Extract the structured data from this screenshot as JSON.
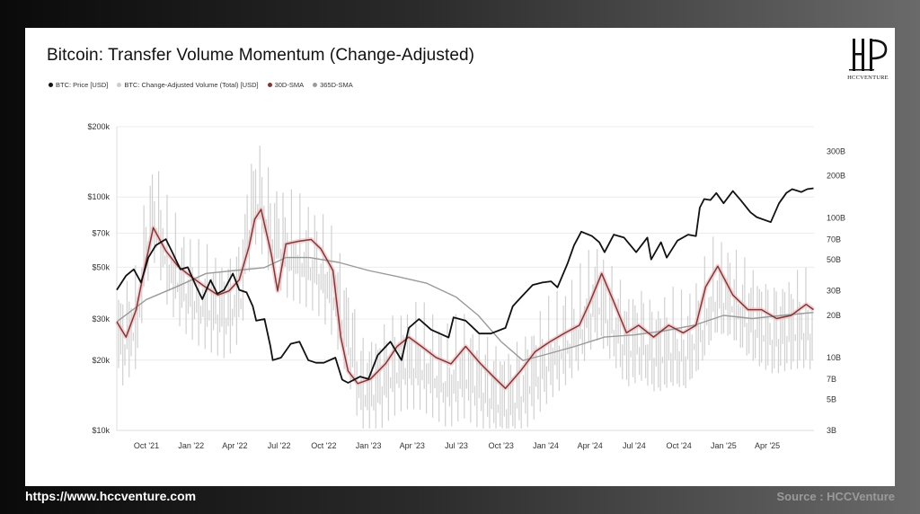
{
  "title": "Bitcoin: Transfer Volume Momentum (Change-Adjusted)",
  "legend": [
    {
      "label": "BTC: Price [USD]",
      "color": "#111111"
    },
    {
      "label": "BTC: Change-Adjusted Volume (Total) [USD]",
      "color": "#cccccc"
    },
    {
      "label": "30D-SMA",
      "color": "#7a3b35"
    },
    {
      "label": "365D-SMA",
      "color": "#9a9a9a"
    }
  ],
  "logo": {
    "text": "HCCVENTURE",
    "icon": "hcc-logo-icon"
  },
  "footer": {
    "url": "https://www.hccventure.com",
    "source": "Source : HCCVenture"
  },
  "colors": {
    "price": "#111111",
    "volume": "#c8c8c8",
    "volume_highlight": "#f3c2c9",
    "sma30": "#7a3b35",
    "sma365": "#9a9a9a"
  },
  "chart_data": {
    "type": "line",
    "title": "Bitcoin: Transfer Volume Momentum (Change-Adjusted)",
    "x_ticks": [
      "Oct '21",
      "Jan '22",
      "Apr '22",
      "Jul '22",
      "Oct '22",
      "Jan '23",
      "Apr '23",
      "Jul '23",
      "Oct '23",
      "Jan '24",
      "Apr '24",
      "Jul '24",
      "Oct '24",
      "Jan '25",
      "Apr '25"
    ],
    "y_left_ticks": [
      "$10k",
      "$20k",
      "$30k",
      "$50k",
      "$70k",
      "$100k",
      "$200k"
    ],
    "y_left_values": [
      10000,
      20000,
      30000,
      50000,
      70000,
      100000,
      200000
    ],
    "y_right_ticks": [
      "3B",
      "5B",
      "7B",
      "10B",
      "20B",
      "30B",
      "50B",
      "70B",
      "100B",
      "200B",
      "300B"
    ],
    "y_right_values": [
      3,
      5,
      7,
      10,
      20,
      30,
      50,
      70,
      100,
      200,
      300
    ],
    "y_left_scale": "log",
    "y_right_scale": "log",
    "ylim_left": [
      10000,
      200000
    ],
    "ylim_right": [
      3,
      450
    ],
    "grid": "horizontal",
    "legend_position": "top-left",
    "series": [
      {
        "name": "BTC: Price [USD]",
        "axis": "left",
        "x": [
          "2021-08-01",
          "2021-08-20",
          "2021-09-05",
          "2021-09-20",
          "2021-10-05",
          "2021-10-20",
          "2021-11-10",
          "2021-11-25",
          "2021-12-10",
          "2021-12-25",
          "2022-01-10",
          "2022-01-24",
          "2022-02-10",
          "2022-02-24",
          "2022-03-10",
          "2022-03-28",
          "2022-04-10",
          "2022-04-25",
          "2022-05-08",
          "2022-05-15",
          "2022-06-01",
          "2022-06-13",
          "2022-06-18",
          "2022-07-05",
          "2022-07-25",
          "2022-08-12",
          "2022-08-30",
          "2022-09-15",
          "2022-10-01",
          "2022-10-25",
          "2022-11-08",
          "2022-11-20",
          "2022-12-15",
          "2023-01-01",
          "2023-01-20",
          "2023-02-15",
          "2023-03-10",
          "2023-03-25",
          "2023-04-15",
          "2023-05-10",
          "2023-06-15",
          "2023-06-25",
          "2023-07-20",
          "2023-08-17",
          "2023-09-10",
          "2023-10-10",
          "2023-10-25",
          "2023-11-10",
          "2023-12-05",
          "2023-12-25",
          "2024-01-12",
          "2024-01-25",
          "2024-02-15",
          "2024-02-28",
          "2024-03-14",
          "2024-04-05",
          "2024-04-20",
          "2024-05-01",
          "2024-05-20",
          "2024-06-10",
          "2024-07-05",
          "2024-07-28",
          "2024-08-05",
          "2024-08-25",
          "2024-09-06",
          "2024-09-28",
          "2024-10-20",
          "2024-11-05",
          "2024-11-13",
          "2024-11-22",
          "2024-12-05",
          "2024-12-17",
          "2025-01-01",
          "2025-01-20",
          "2025-02-05",
          "2025-02-25",
          "2025-03-10",
          "2025-04-08",
          "2025-04-25",
          "2025-05-10",
          "2025-05-22",
          "2025-06-10",
          "2025-06-22",
          "2025-07-05"
        ],
        "values": [
          40000,
          46000,
          49000,
          43000,
          55000,
          62000,
          66000,
          57000,
          49000,
          50000,
          42000,
          36500,
          44000,
          38500,
          40000,
          47000,
          40000,
          39000,
          34000,
          29500,
          30000,
          23000,
          20000,
          20500,
          23500,
          24000,
          20000,
          19500,
          19500,
          20500,
          16500,
          16000,
          17000,
          16600,
          21000,
          24000,
          20000,
          27500,
          30000,
          27000,
          25000,
          30500,
          29500,
          26000,
          26000,
          27500,
          34000,
          37000,
          42000,
          43000,
          43500,
          41000,
          52000,
          62000,
          71000,
          68000,
          64000,
          58000,
          69000,
          67000,
          58000,
          67000,
          54000,
          64000,
          55000,
          65000,
          69000,
          68000,
          90000,
          98000,
          97000,
          104000,
          94000,
          106000,
          97000,
          86000,
          82000,
          78000,
          94000,
          104000,
          108000,
          105000,
          108000,
          109000
        ]
      },
      {
        "name": "30D-SMA",
        "axis": "right",
        "x": [
          "2021-08-01",
          "2021-08-20",
          "2021-09-10",
          "2021-09-25",
          "2021-10-15",
          "2021-11-10",
          "2021-12-05",
          "2022-01-05",
          "2022-01-30",
          "2022-02-25",
          "2022-03-20",
          "2022-04-10",
          "2022-04-30",
          "2022-05-12",
          "2022-05-25",
          "2022-06-15",
          "2022-06-28",
          "2022-07-15",
          "2022-08-10",
          "2022-09-05",
          "2022-09-25",
          "2022-10-20",
          "2022-11-05",
          "2022-11-20",
          "2022-12-10",
          "2023-01-05",
          "2023-02-05",
          "2023-03-01",
          "2023-03-25",
          "2023-04-20",
          "2023-05-20",
          "2023-06-20",
          "2023-07-20",
          "2023-08-20",
          "2023-09-20",
          "2023-10-10",
          "2023-11-10",
          "2023-12-10",
          "2024-01-10",
          "2024-02-10",
          "2024-03-10",
          "2024-04-01",
          "2024-04-25",
          "2024-05-20",
          "2024-06-15",
          "2024-07-10",
          "2024-08-10",
          "2024-09-10",
          "2024-10-10",
          "2024-11-05",
          "2024-11-25",
          "2024-12-20",
          "2025-01-20",
          "2025-02-20",
          "2025-03-20",
          "2025-04-20",
          "2025-05-20",
          "2025-06-20",
          "2025-07-05"
        ],
        "values": [
          18,
          14,
          22,
          40,
          85,
          58,
          45,
          37,
          32,
          28,
          30,
          36,
          62,
          98,
          115,
          55,
          30,
          65,
          68,
          70,
          60,
          42,
          14,
          8,
          6.5,
          7,
          9,
          12,
          14,
          12,
          10,
          9,
          12,
          9,
          7,
          6,
          8,
          11,
          13,
          15,
          17,
          25,
          40,
          25,
          15,
          17,
          14,
          17,
          15,
          17,
          32,
          45,
          28,
          22,
          22,
          19,
          20,
          24,
          22
        ]
      },
      {
        "name": "365D-SMA",
        "axis": "right",
        "x": [
          "2021-08-01",
          "2021-10-01",
          "2021-12-01",
          "2022-02-01",
          "2022-04-01",
          "2022-06-01",
          "2022-07-15",
          "2022-09-01",
          "2022-11-01",
          "2023-01-01",
          "2023-03-01",
          "2023-05-01",
          "2023-07-01",
          "2023-08-15",
          "2023-10-01",
          "2023-11-15",
          "2024-01-01",
          "2024-03-01",
          "2024-05-01",
          "2024-07-01",
          "2024-09-01",
          "2024-11-01",
          "2025-01-01",
          "2025-03-01",
          "2025-05-01",
          "2025-07-05"
        ],
        "values": [
          18,
          26,
          32,
          40,
          42,
          44,
          52,
          52,
          48,
          42,
          38,
          34,
          27,
          20,
          13,
          9.5,
          10.5,
          12,
          14,
          14.5,
          15.5,
          17,
          20,
          19,
          20,
          21
        ]
      },
      {
        "name": "BTC: Change-Adjusted Volume (Total) [USD]",
        "axis": "right",
        "style": "bars",
        "x": [
          "2021-08",
          "2021-09",
          "2021-10",
          "2021-11",
          "2021-12",
          "2022-01",
          "2022-02",
          "2022-03",
          "2022-04",
          "2022-05",
          "2022-06",
          "2022-07",
          "2022-08",
          "2022-09",
          "2022-10",
          "2022-11",
          "2022-12",
          "2023-01",
          "2023-02",
          "2023-03",
          "2023-04",
          "2023-05",
          "2023-06",
          "2023-07",
          "2023-08",
          "2023-09",
          "2023-10",
          "2023-11",
          "2023-12",
          "2024-01",
          "2024-02",
          "2024-03",
          "2024-04",
          "2024-05",
          "2024-06",
          "2024-07",
          "2024-08",
          "2024-09",
          "2024-10",
          "2024-11",
          "2024-12",
          "2025-01",
          "2025-02",
          "2025-03",
          "2025-04",
          "2025-05",
          "2025-06",
          "2025-07"
        ],
        "values": [
          20,
          28,
          160,
          70,
          50,
          40,
          35,
          32,
          45,
          220,
          120,
          90,
          80,
          70,
          50,
          25,
          9,
          9,
          12,
          14,
          14,
          12,
          10,
          12,
          10,
          8,
          7,
          9,
          12,
          16,
          20,
          26,
          40,
          28,
          18,
          20,
          16,
          18,
          17,
          24,
          42,
          40,
          30,
          25,
          22,
          24,
          25,
          24
        ]
      }
    ]
  }
}
